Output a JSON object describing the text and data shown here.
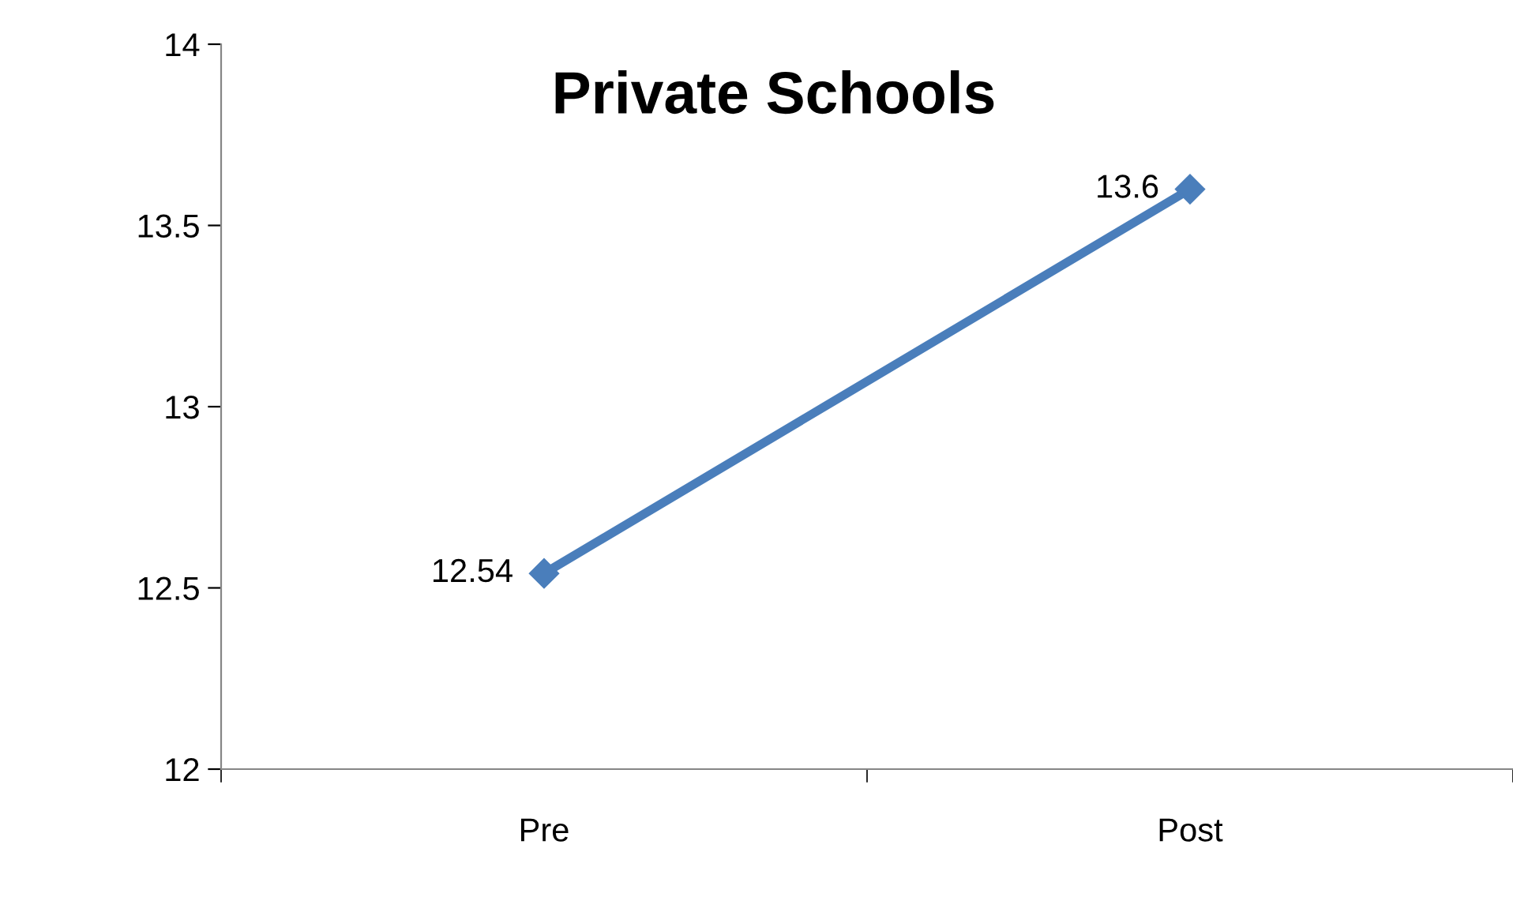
{
  "chart_data": {
    "type": "line",
    "title": "Private Schools",
    "categories": [
      "Pre",
      "Post"
    ],
    "series": [
      {
        "color": "#4a7ebb",
        "values": [
          12.54,
          13.6
        ]
      }
    ],
    "ylim": [
      12,
      14
    ],
    "yticks": [
      12,
      12.5,
      13,
      13.5,
      14
    ],
    "marker": "diamond",
    "line_style": "solid",
    "data_labels": true,
    "grid": false,
    "legend": false
  }
}
